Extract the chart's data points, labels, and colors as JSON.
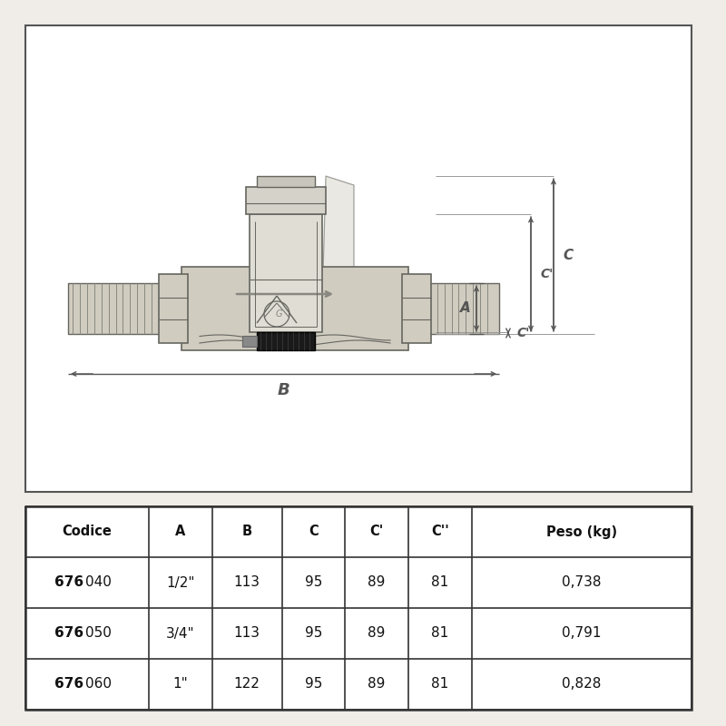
{
  "bg_color": "#f0ede8",
  "diagram_bg": "#ffffff",
  "line_color": "#555555",
  "dark_color": "#333333",
  "dim_color": "#555555",
  "body_fill": "#d0ccc0",
  "body_edge": "#666660",
  "thread_color": "#888880",
  "actuator_fill": "#e0ddd5",
  "actuator_edge": "#666660",
  "actuator_top_fill": "#d5d2ca",
  "black_fill": "#1a1a1a",
  "grey_fill": "#888888",
  "cap_fill": "#c8c5bc",
  "shadow_fill": "#c0bcb0",
  "table_cols": [
    "Codice",
    "A",
    "B",
    "C",
    "C'",
    "C''",
    "Peso (kg)"
  ],
  "table_rows": [
    [
      "676",
      "040",
      "1/2\"",
      "113",
      "95",
      "89",
      "81",
      "0,738"
    ],
    [
      "676",
      "050",
      "3/4\"",
      "113",
      "95",
      "89",
      "81",
      "0,791"
    ],
    [
      "676",
      "060",
      "1\"",
      "122",
      "95",
      "89",
      "81",
      "0,828"
    ]
  ]
}
